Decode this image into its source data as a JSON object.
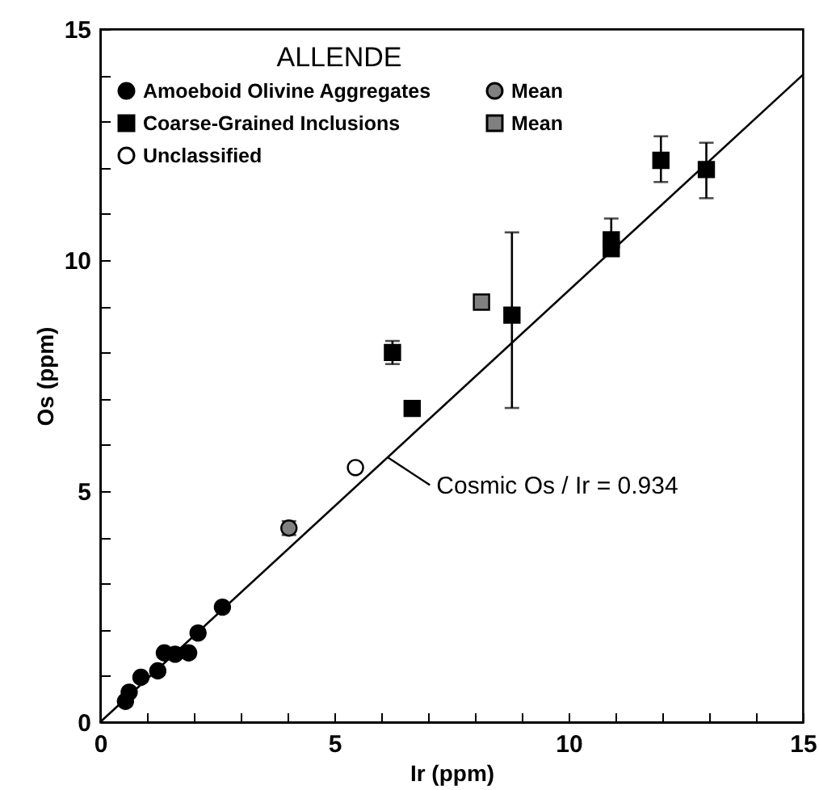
{
  "chart_data": {
    "type": "scatter",
    "xlabel": "Ir (ppm)",
    "ylabel": "Os (ppm)",
    "legend_title": "ALLENDE",
    "legend": "top left",
    "grid": false,
    "xlim": [
      0,
      15
    ],
    "ylim": [
      0,
      15
    ],
    "xticks": [
      0,
      {
        "value": 1,
        "label": null
      },
      {
        "value": 2,
        "label": null
      },
      {
        "value": 3,
        "label": null
      },
      {
        "value": 4,
        "label": null
      },
      5,
      {
        "value": 6,
        "label": null
      },
      {
        "value": 7,
        "label": null
      },
      {
        "value": 8,
        "label": null
      },
      {
        "value": 9,
        "label": null
      },
      10,
      {
        "value": 11,
        "label": null
      },
      {
        "value": 12,
        "label": null
      },
      {
        "value": 13,
        "label": null
      },
      {
        "value": 14,
        "label": null
      },
      15
    ],
    "yticks": [
      0,
      {
        "value": 1,
        "label": null
      },
      {
        "value": 2,
        "label": null
      },
      {
        "value": 3,
        "label": null
      },
      {
        "value": 4,
        "label": null
      },
      5,
      {
        "value": 6,
        "label": null
      },
      {
        "value": 7,
        "label": null
      },
      {
        "value": 8,
        "label": null
      },
      {
        "value": 9,
        "label": null
      },
      10,
      {
        "value": 11,
        "label": null
      },
      {
        "value": 12,
        "label": null
      },
      {
        "value": 13,
        "label": null
      },
      {
        "value": 14,
        "label": null
      },
      15
    ],
    "series": [
      {
        "name": "Amoeboid Olivine Aggregates",
        "color": "#000000",
        "marker": "circle",
        "x": [
          0.54,
          0.62,
          0.87,
          1.23,
          1.37,
          1.6,
          1.89,
          2.09,
          2.61
        ],
        "values": [
          0.45,
          0.65,
          0.97,
          1.11,
          1.5,
          1.47,
          1.5,
          1.93,
          2.49
        ]
      },
      {
        "name": "Coarse-Grained Inclusions",
        "color": "#000000",
        "marker": "square",
        "x": [
          6.24,
          6.66,
          8.79,
          10.91,
          10.91,
          11.97,
          12.94
        ],
        "values": [
          8.0,
          6.79,
          8.81,
          10.44,
          10.25,
          12.16,
          11.96
        ],
        "errors": [
          [
            7.75,
            8.25
          ],
          [
            6.65,
            6.95
          ],
          [
            6.8,
            10.6
          ],
          [
            10.15,
            10.9
          ],
          null,
          [
            11.69,
            12.68
          ],
          [
            11.34,
            12.54
          ]
        ]
      },
      {
        "name": "Unclassified",
        "color": "#ffffff",
        "marker": "circle",
        "x": [
          5.45
        ],
        "values": [
          5.51
        ]
      },
      {
        "name": "Mean",
        "color": "#808080",
        "marker": "circle",
        "x": [
          4.03
        ],
        "values": [
          4.2
        ],
        "errors": [
          [
            4.05,
            4.35
          ]
        ]
      },
      {
        "name": "Mean",
        "color": "#808080",
        "marker": "square",
        "x": [
          8.14
        ],
        "values": [
          9.09
        ]
      },
      {
        "type": "line",
        "color": "#000000",
        "x": [
          0,
          15
        ],
        "values": [
          0,
          14.01
        ]
      }
    ],
    "annotations": [
      {
        "text": "Cosmic Os / Ir = 0.934",
        "x": 6.14,
        "y": 5.73
      }
    ]
  }
}
